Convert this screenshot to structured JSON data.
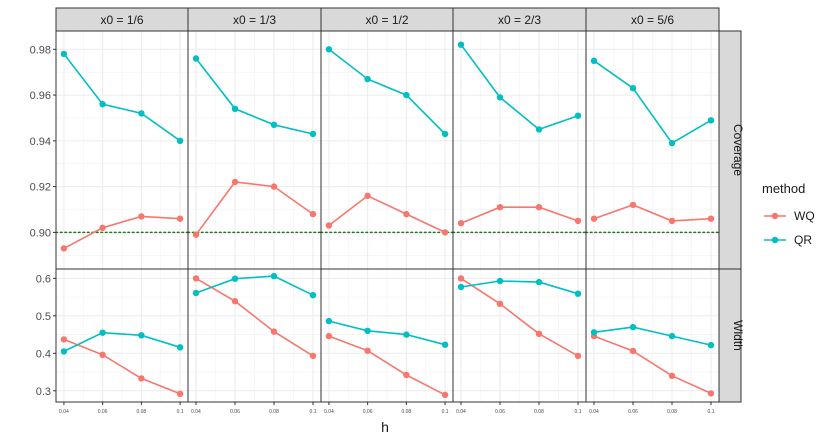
{
  "chart_data": {
    "type": "line",
    "facet_columns": [
      "x0 = 1/6",
      "x0 = 1/3",
      "x0 = 1/2",
      "x0 = 2/3",
      "x0 = 5/6"
    ],
    "facet_rows": [
      "Coverage",
      "Width"
    ],
    "x": [
      0.04,
      0.06,
      0.08,
      0.1
    ],
    "x_tick_labels": [
      "0.04",
      "0.06",
      "0.08",
      "0.1"
    ],
    "xlabel": "h",
    "ylabel": "",
    "rows": {
      "Coverage": {
        "ylim": [
          0.884,
          0.988
        ],
        "ticks": [
          0.9,
          0.92,
          0.94,
          0.96,
          0.98
        ],
        "tick_labels": [
          "0.90",
          "0.92",
          "0.94",
          "0.96",
          "0.98"
        ],
        "reference_line": 0.9,
        "series": {
          "WQ": [
            [
              0.893,
              0.902,
              0.907,
              0.906
            ],
            [
              0.899,
              0.922,
              0.92,
              0.908
            ],
            [
              0.903,
              0.916,
              0.908,
              0.9
            ],
            [
              0.904,
              0.911,
              0.911,
              0.905
            ],
            [
              0.906,
              0.912,
              0.905,
              0.906
            ]
          ],
          "QR": [
            [
              0.978,
              0.956,
              0.952,
              0.94
            ],
            [
              0.976,
              0.954,
              0.947,
              0.943
            ],
            [
              0.98,
              0.967,
              0.96,
              0.943
            ],
            [
              0.982,
              0.959,
              0.945,
              0.951
            ],
            [
              0.975,
              0.963,
              0.939,
              0.949
            ]
          ]
        }
      },
      "Width": {
        "ylim": [
          0.27,
          0.625
        ],
        "ticks": [
          0.3,
          0.4,
          0.5,
          0.6
        ],
        "tick_labels": [
          "0.3",
          "0.4",
          "0.5",
          "0.6"
        ],
        "series": {
          "WQ": [
            [
              0.437,
              0.396,
              0.333,
              0.292
            ],
            [
              0.6,
              0.539,
              0.458,
              0.393
            ],
            [
              0.446,
              0.407,
              0.342,
              0.289
            ],
            [
              0.6,
              0.532,
              0.452,
              0.393
            ],
            [
              0.446,
              0.406,
              0.34,
              0.293
            ]
          ],
          "QR": [
            [
              0.405,
              0.455,
              0.448,
              0.416
            ],
            [
              0.561,
              0.599,
              0.606,
              0.555
            ],
            [
              0.486,
              0.46,
              0.45,
              0.423
            ],
            [
              0.577,
              0.593,
              0.59,
              0.559
            ],
            [
              0.456,
              0.47,
              0.446,
              0.422
            ]
          ]
        }
      }
    },
    "legend": {
      "title": "method",
      "position": "right",
      "entries": [
        {
          "name": "WQ",
          "color": "#F8766D"
        },
        {
          "name": "QR",
          "color": "#00BFC4"
        }
      ]
    },
    "reference_line_color": "#1b7a1b"
  }
}
